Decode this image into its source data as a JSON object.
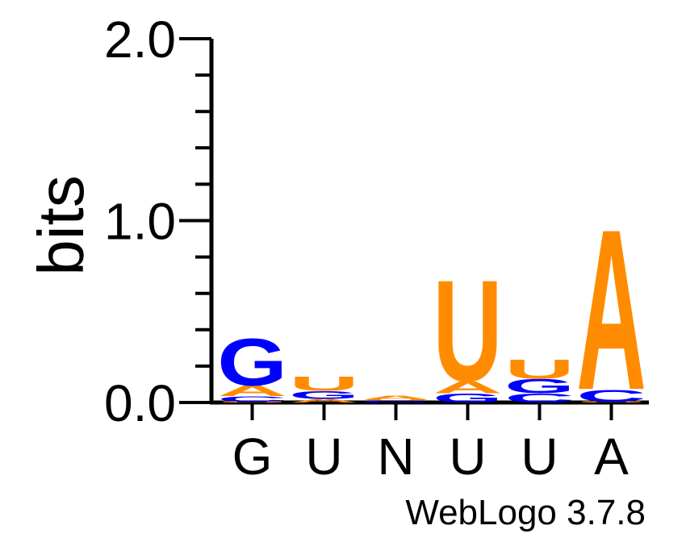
{
  "chart_data": {
    "type": "sequence-logo",
    "ylabel": "bits",
    "ylim": [
      0,
      2
    ],
    "yticks": [
      "0.0",
      "1.0",
      "2.0"
    ],
    "minor_tick_step": 0.2,
    "xlabels": [
      "G",
      "U",
      "N",
      "U",
      "U",
      "A"
    ],
    "footer": "WebLogo 3.7.8",
    "colors": {
      "A": "#ff8c00",
      "U": "#ff8c00",
      "G": "#0000ff",
      "C": "#0000ff"
    },
    "positions": [
      {
        "stack": [
          {
            "letter": "U",
            "bits": 0.005
          },
          {
            "letter": "C",
            "bits": 0.03
          },
          {
            "letter": "A",
            "bits": 0.06
          },
          {
            "letter": "G",
            "bits": 0.27
          }
        ]
      },
      {
        "stack": [
          {
            "letter": "A",
            "bits": 0.02
          },
          {
            "letter": "G",
            "bits": 0.045
          },
          {
            "letter": "U",
            "bits": 0.08
          }
        ]
      },
      {
        "stack": [
          {
            "letter": "G",
            "bits": 0.005
          },
          {
            "letter": "C",
            "bits": 0.005
          },
          {
            "letter": "U",
            "bits": 0.005
          },
          {
            "letter": "A",
            "bits": 0.025
          }
        ]
      },
      {
        "stack": [
          {
            "letter": "G",
            "bits": 0.05
          },
          {
            "letter": "A",
            "bits": 0.07
          },
          {
            "letter": "U",
            "bits": 0.58
          }
        ]
      },
      {
        "stack": [
          {
            "letter": "C",
            "bits": 0.05
          },
          {
            "letter": "G",
            "bits": 0.08
          },
          {
            "letter": "U",
            "bits": 0.11
          }
        ]
      },
      {
        "stack": [
          {
            "letter": "U",
            "bits": 0.005
          },
          {
            "letter": "C",
            "bits": 0.07
          },
          {
            "letter": "A",
            "bits": 0.92
          }
        ]
      }
    ]
  }
}
